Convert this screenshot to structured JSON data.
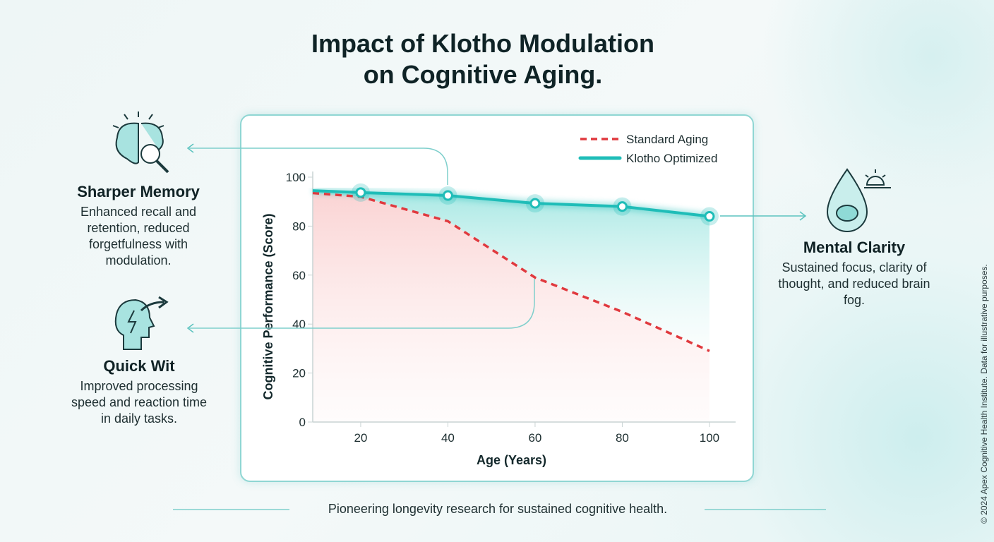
{
  "title_line1": "Impact of Klotho Modulation",
  "title_line2": "on Cognitive Aging.",
  "left_panels": [
    {
      "icon": "brain-magnifier-icon",
      "heading": "Sharper Memory",
      "text": "Enhanced recall and retention, reduced forgetfulness with modulation."
    },
    {
      "icon": "head-lightning-icon",
      "heading": "Quick Wit",
      "text": "Improved processing speed and reaction time in daily tasks."
    }
  ],
  "right_panel": {
    "icon": "brain-droplet-sun-icon",
    "heading": "Mental Clarity",
    "text": "Sustained focus, clarity of thought, and reduced brain fog."
  },
  "footer": "Pioneering longevity research for sustained cognitive health.",
  "copyright": "© 2024 Apex Cognitive Health Institute. Data for illustrative purposes.",
  "chart_data": {
    "type": "line",
    "xlabel": "Age (Years)",
    "ylabel": "Cognitive Performance (Score)",
    "xlim": [
      9,
      106
    ],
    "ylim": [
      0,
      100
    ],
    "xticks": [
      20,
      40,
      60,
      80,
      100
    ],
    "yticks": [
      0,
      20,
      40,
      60,
      80,
      100
    ],
    "grid": false,
    "legend": "top-right",
    "series": [
      {
        "name": "Standard Aging",
        "style": "dashed",
        "color": "#e0393e",
        "x": [
          9,
          20,
          40,
          60,
          80,
          100
        ],
        "y": [
          93.5,
          92,
          82,
          59,
          45,
          29
        ]
      },
      {
        "name": "Klotho Optimized",
        "style": "solid",
        "color": "#1fbdb8",
        "markers": true,
        "x": [
          9,
          20,
          40,
          60,
          80,
          100
        ],
        "y": [
          94.5,
          93.7,
          92.5,
          89.3,
          88,
          84
        ]
      }
    ]
  }
}
